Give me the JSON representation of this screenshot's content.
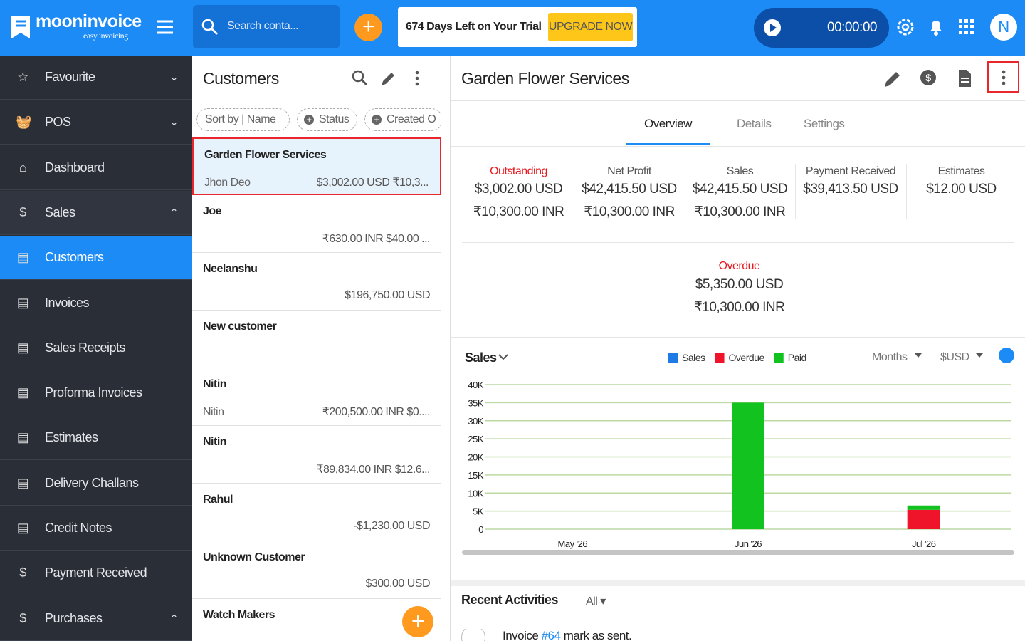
{
  "header": {
    "logo": "mooninvoice",
    "tagline": "easy invoicing",
    "search_placeholder": "Search conta...",
    "trial": "674 Days Left on Your Trial",
    "upgrade": "UPGRADE NOW",
    "timer": "00:00:00",
    "avatar": "N"
  },
  "sidebar": {
    "items": [
      {
        "label": "Favourite"
      },
      {
        "label": "POS"
      },
      {
        "label": "Dashboard"
      },
      {
        "label": "Sales"
      },
      {
        "label": "Customers"
      },
      {
        "label": "Invoices"
      },
      {
        "label": "Sales Receipts"
      },
      {
        "label": "Proforma Invoices"
      },
      {
        "label": "Estimates"
      },
      {
        "label": "Delivery Challans"
      },
      {
        "label": "Credit Notes"
      },
      {
        "label": "Payment Received"
      },
      {
        "label": "Purchases"
      }
    ]
  },
  "customers": {
    "title": "Customers",
    "filters": [
      "Sort by | Name",
      "Status",
      "Created O"
    ],
    "list": [
      {
        "name": "Garden Flower Services",
        "contact": "Jhon Deo",
        "amount": "$3,002.00 USD ₹10,3..."
      },
      {
        "name": "Joe",
        "amount": "₹630.00 INR $40.00 ..."
      },
      {
        "name": "Neelanshu",
        "amount": "$196,750.00 USD"
      },
      {
        "name": "New customer"
      },
      {
        "name": "Nitin",
        "contact": "Nitin",
        "amount": "₹200,500.00 INR $0...."
      },
      {
        "name": "Nitin",
        "amount": "₹89,834.00 INR $12.6..."
      },
      {
        "name": "Rahul",
        "amount": "-$1,230.00 USD"
      },
      {
        "name": "Unknown Customer",
        "amount": "$300.00 USD"
      },
      {
        "name": "Watch Makers"
      }
    ]
  },
  "detail": {
    "title": "Garden Flower Services",
    "tabs": [
      "Overview",
      "Details",
      "Settings"
    ],
    "stats": [
      {
        "label": "Outstanding",
        "lines": [
          "$3,002.00 USD",
          "₹10,300.00 INR"
        ]
      },
      {
        "label": "Net Profit",
        "lines": [
          "$42,415.50 USD",
          "₹10,300.00 INR"
        ]
      },
      {
        "label": "Sales",
        "lines": [
          "$42,415.50 USD",
          "₹10,300.00 INR"
        ]
      },
      {
        "label": "Payment Received",
        "lines": [
          "$39,413.50 USD"
        ]
      },
      {
        "label": "Estimates",
        "lines": [
          "$12.00 USD"
        ]
      }
    ],
    "overdue": {
      "label": "Overdue",
      "lines": [
        "$5,350.00 USD",
        "₹10,300.00 INR"
      ]
    },
    "period": "Months",
    "currency": "$USD"
  },
  "chart_data": {
    "type": "bar",
    "stacked": true,
    "title": "Sales",
    "categories": [
      "May '26",
      "Jun '26",
      "Jul '26"
    ],
    "series": [
      {
        "name": "Sales",
        "color": "#1e7be6",
        "values": [
          0,
          0,
          0
        ]
      },
      {
        "name": "Overdue",
        "color": "#f0142a",
        "values": [
          0,
          0,
          5350
        ]
      },
      {
        "name": "Paid",
        "color": "#12c21e",
        "values": [
          0,
          35000,
          1200
        ]
      }
    ],
    "ylim": [
      0,
      40000
    ],
    "yticks": [
      0,
      {
        "value": 5000,
        "label": "5K"
      },
      {
        "value": 10000,
        "label": "10K"
      },
      {
        "value": 15000,
        "label": "15K"
      },
      {
        "value": 20000,
        "label": "20K"
      },
      {
        "value": 25000,
        "label": "25K"
      },
      {
        "value": 30000,
        "label": "30K"
      },
      {
        "value": 35000,
        "label": "35K"
      },
      {
        "value": 40000,
        "label": "40K"
      }
    ],
    "grid": true
  },
  "activities": {
    "title": "Recent Activities",
    "filter": "All",
    "items": [
      {
        "before": "Invoice ",
        "link": "#64",
        "after": " mark as sent."
      }
    ]
  }
}
